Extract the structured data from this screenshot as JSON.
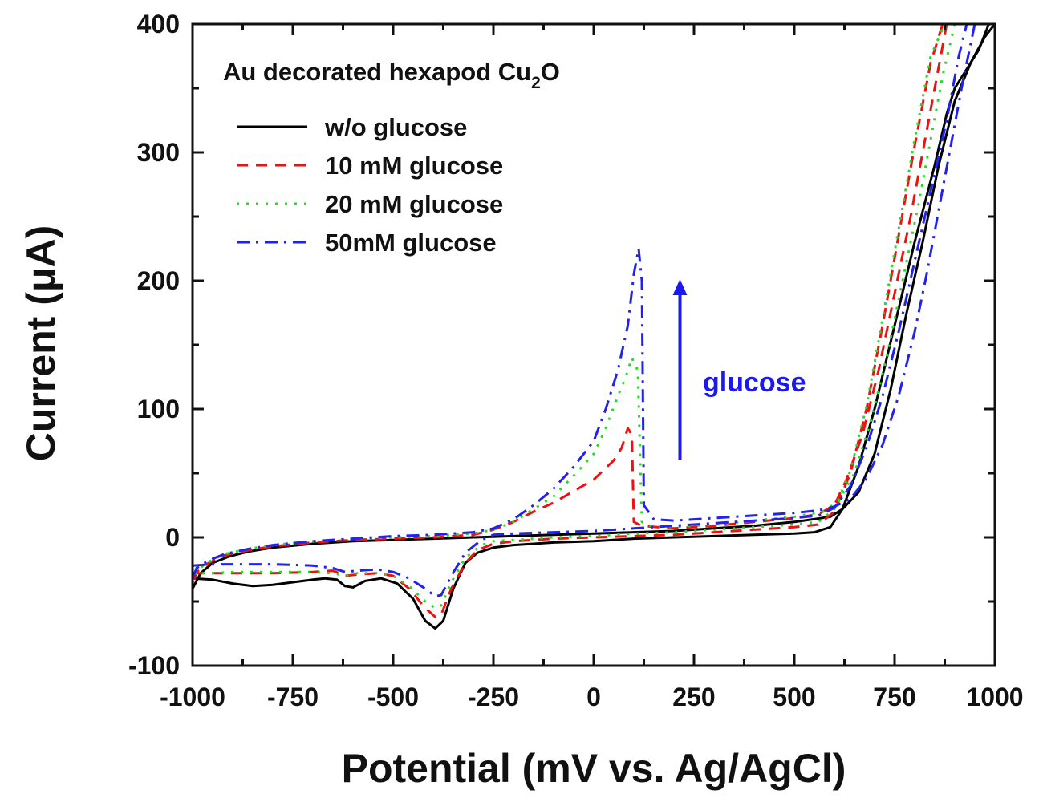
{
  "chart_data": {
    "type": "line",
    "title": "Au decorated hexapod Cu",
    "title_subscript": "2",
    "title_suffix": "O",
    "xlabel": "Potential (mV vs. Ag/AgCl)",
    "ylabel": "Current (μA)",
    "xlim": [
      -1000,
      1000
    ],
    "ylim": [
      -100,
      400
    ],
    "xticks": [
      -1000,
      -750,
      -500,
      -250,
      0,
      250,
      500,
      750,
      1000
    ],
    "yticks": [
      -100,
      0,
      100,
      200,
      300,
      400
    ],
    "legend_position": "top-left",
    "annotation": {
      "text": "glucose",
      "color": "#1a1aee",
      "arrow_x": 215,
      "arrow_from": 60,
      "arrow_to": 200
    },
    "series": [
      {
        "name": "w/o glucose",
        "color": "#000000",
        "dash": "",
        "forward": [
          [
            -1000,
            -32
          ],
          [
            -950,
            -33
          ],
          [
            -900,
            -36
          ],
          [
            -850,
            -38
          ],
          [
            -800,
            -37
          ],
          [
            -750,
            -35
          ],
          [
            -700,
            -33
          ],
          [
            -670,
            -32
          ],
          [
            -640,
            -33
          ],
          [
            -620,
            -38
          ],
          [
            -600,
            -39
          ],
          [
            -570,
            -34
          ],
          [
            -530,
            -32
          ],
          [
            -490,
            -36
          ],
          [
            -450,
            -48
          ],
          [
            -420,
            -65
          ],
          [
            -395,
            -71
          ],
          [
            -375,
            -65
          ],
          [
            -350,
            -40
          ],
          [
            -320,
            -20
          ],
          [
            -290,
            -12
          ],
          [
            -250,
            -8
          ],
          [
            -200,
            -6
          ],
          [
            -100,
            -4
          ],
          [
            0,
            -3
          ],
          [
            100,
            -1
          ],
          [
            200,
            0
          ],
          [
            300,
            1
          ],
          [
            400,
            2
          ],
          [
            500,
            3
          ],
          [
            550,
            4
          ],
          [
            590,
            8
          ],
          [
            620,
            22
          ],
          [
            660,
            55
          ],
          [
            700,
            100
          ],
          [
            750,
            165
          ],
          [
            800,
            230
          ],
          [
            850,
            290
          ],
          [
            880,
            330
          ],
          [
            900,
            350
          ],
          [
            930,
            365
          ],
          [
            960,
            380
          ],
          [
            985,
            400
          ]
        ],
        "backward": [
          [
            1000,
            400
          ],
          [
            975,
            390
          ],
          [
            940,
            370
          ],
          [
            900,
            340
          ],
          [
            860,
            290
          ],
          [
            820,
            230
          ],
          [
            780,
            175
          ],
          [
            740,
            115
          ],
          [
            700,
            65
          ],
          [
            660,
            35
          ],
          [
            620,
            22
          ],
          [
            590,
            16
          ],
          [
            500,
            12
          ],
          [
            400,
            9
          ],
          [
            300,
            7
          ],
          [
            200,
            5
          ],
          [
            100,
            4
          ],
          [
            0,
            3
          ],
          [
            -100,
            2
          ],
          [
            -200,
            1
          ],
          [
            -300,
            0
          ],
          [
            -400,
            -1
          ],
          [
            -500,
            -2
          ],
          [
            -600,
            -3
          ],
          [
            -700,
            -5
          ],
          [
            -800,
            -8
          ],
          [
            -860,
            -11
          ],
          [
            -910,
            -15
          ],
          [
            -950,
            -20
          ],
          [
            -980,
            -28
          ],
          [
            -1000,
            -40
          ]
        ]
      },
      {
        "name": "10 mM glucose",
        "color": "#ee1111",
        "dash": "14,10",
        "forward": [
          [
            -1000,
            -28
          ],
          [
            -950,
            -28
          ],
          [
            -900,
            -28
          ],
          [
            -800,
            -28
          ],
          [
            -700,
            -27
          ],
          [
            -650,
            -26
          ],
          [
            -620,
            -30
          ],
          [
            -590,
            -29
          ],
          [
            -540,
            -28
          ],
          [
            -500,
            -30
          ],
          [
            -460,
            -40
          ],
          [
            -420,
            -55
          ],
          [
            -395,
            -62
          ],
          [
            -380,
            -60
          ],
          [
            -355,
            -40
          ],
          [
            -320,
            -20
          ],
          [
            -290,
            -10
          ],
          [
            -250,
            -5
          ],
          [
            -200,
            -3
          ],
          [
            -100,
            -1
          ],
          [
            0,
            0
          ],
          [
            100,
            1
          ],
          [
            200,
            2
          ],
          [
            300,
            4
          ],
          [
            400,
            6
          ],
          [
            500,
            8
          ],
          [
            560,
            10
          ],
          [
            600,
            20
          ],
          [
            640,
            50
          ],
          [
            680,
            100
          ],
          [
            720,
            165
          ],
          [
            760,
            235
          ],
          [
            800,
            305
          ],
          [
            840,
            370
          ],
          [
            870,
            400
          ]
        ],
        "backward": [
          [
            880,
            400
          ],
          [
            850,
            350
          ],
          [
            820,
            300
          ],
          [
            790,
            250
          ],
          [
            750,
            190
          ],
          [
            710,
            130
          ],
          [
            670,
            80
          ],
          [
            630,
            45
          ],
          [
            600,
            25
          ],
          [
            560,
            18
          ],
          [
            500,
            15
          ],
          [
            400,
            12
          ],
          [
            300,
            9
          ],
          [
            200,
            7
          ],
          [
            160,
            8
          ],
          [
            120,
            9
          ],
          [
            100,
            12
          ],
          [
            95,
            80
          ],
          [
            85,
            85
          ],
          [
            70,
            70
          ],
          [
            50,
            60
          ],
          [
            0,
            45
          ],
          [
            -50,
            36
          ],
          [
            -100,
            27
          ],
          [
            -150,
            20
          ],
          [
            -200,
            12
          ],
          [
            -250,
            6
          ],
          [
            -300,
            2
          ],
          [
            -400,
            0
          ],
          [
            -500,
            -1
          ],
          [
            -600,
            -2
          ],
          [
            -700,
            -4
          ],
          [
            -800,
            -7
          ],
          [
            -860,
            -10
          ],
          [
            -920,
            -14
          ],
          [
            -960,
            -20
          ],
          [
            -990,
            -27
          ],
          [
            -1000,
            -38
          ]
        ]
      },
      {
        "name": "20 mM glucose",
        "color": "#22dd22",
        "dash": "3,9",
        "forward": [
          [
            -1000,
            -28
          ],
          [
            -950,
            -28
          ],
          [
            -900,
            -27
          ],
          [
            -800,
            -27
          ],
          [
            -700,
            -27
          ],
          [
            -650,
            -28
          ],
          [
            -620,
            -30
          ],
          [
            -590,
            -28
          ],
          [
            -540,
            -28
          ],
          [
            -500,
            -30
          ],
          [
            -460,
            -38
          ],
          [
            -420,
            -50
          ],
          [
            -395,
            -55
          ],
          [
            -380,
            -53
          ],
          [
            -355,
            -35
          ],
          [
            -320,
            -16
          ],
          [
            -280,
            -6
          ],
          [
            -250,
            -3
          ],
          [
            -200,
            -2
          ],
          [
            -100,
            0
          ],
          [
            0,
            1
          ],
          [
            100,
            3
          ],
          [
            200,
            4
          ],
          [
            300,
            6
          ],
          [
            400,
            8
          ],
          [
            500,
            10
          ],
          [
            560,
            12
          ],
          [
            600,
            22
          ],
          [
            640,
            52
          ],
          [
            680,
            102
          ],
          [
            720,
            170
          ],
          [
            760,
            240
          ],
          [
            800,
            310
          ],
          [
            840,
            375
          ],
          [
            875,
            400
          ]
        ],
        "backward": [
          [
            900,
            400
          ],
          [
            870,
            360
          ],
          [
            840,
            310
          ],
          [
            810,
            260
          ],
          [
            770,
            200
          ],
          [
            730,
            140
          ],
          [
            690,
            90
          ],
          [
            650,
            50
          ],
          [
            610,
            28
          ],
          [
            570,
            20
          ],
          [
            500,
            16
          ],
          [
            400,
            13
          ],
          [
            300,
            10
          ],
          [
            200,
            8
          ],
          [
            140,
            9
          ],
          [
            120,
            12
          ],
          [
            110,
            130
          ],
          [
            95,
            140
          ],
          [
            80,
            125
          ],
          [
            60,
            110
          ],
          [
            30,
            85
          ],
          [
            0,
            65
          ],
          [
            -50,
            48
          ],
          [
            -100,
            32
          ],
          [
            -150,
            22
          ],
          [
            -200,
            12
          ],
          [
            -250,
            6
          ],
          [
            -300,
            3
          ],
          [
            -400,
            1
          ],
          [
            -500,
            0
          ],
          [
            -600,
            -1
          ],
          [
            -700,
            -3
          ],
          [
            -800,
            -6
          ],
          [
            -860,
            -9
          ],
          [
            -920,
            -13
          ],
          [
            -960,
            -19
          ],
          [
            -990,
            -26
          ],
          [
            -1000,
            -36
          ]
        ]
      },
      {
        "name": "50mM glucose",
        "color": "#2222ee",
        "dash": "16,8,3,8",
        "forward": [
          [
            -1000,
            -22
          ],
          [
            -950,
            -21
          ],
          [
            -900,
            -21
          ],
          [
            -800,
            -21
          ],
          [
            -700,
            -22
          ],
          [
            -650,
            -24
          ],
          [
            -620,
            -27
          ],
          [
            -590,
            -26
          ],
          [
            -540,
            -25
          ],
          [
            -500,
            -27
          ],
          [
            -460,
            -32
          ],
          [
            -420,
            -40
          ],
          [
            -395,
            -46
          ],
          [
            -380,
            -45
          ],
          [
            -355,
            -30
          ],
          [
            -320,
            -12
          ],
          [
            -280,
            -2
          ],
          [
            -250,
            2
          ],
          [
            -200,
            3
          ],
          [
            -100,
            4
          ],
          [
            0,
            5
          ],
          [
            100,
            7
          ],
          [
            200,
            9
          ],
          [
            300,
            11
          ],
          [
            400,
            13
          ],
          [
            500,
            15
          ],
          [
            560,
            17
          ],
          [
            600,
            23
          ],
          [
            640,
            40
          ],
          [
            680,
            70
          ],
          [
            720,
            110
          ],
          [
            760,
            160
          ],
          [
            800,
            215
          ],
          [
            840,
            270
          ],
          [
            880,
            325
          ],
          [
            910,
            375
          ],
          [
            930,
            400
          ]
        ],
        "backward": [
          [
            950,
            400
          ],
          [
            920,
            355
          ],
          [
            890,
            305
          ],
          [
            860,
            255
          ],
          [
            830,
            205
          ],
          [
            800,
            160
          ],
          [
            760,
            110
          ],
          [
            720,
            72
          ],
          [
            680,
            46
          ],
          [
            640,
            30
          ],
          [
            600,
            24
          ],
          [
            560,
            21
          ],
          [
            500,
            19
          ],
          [
            400,
            17
          ],
          [
            300,
            15
          ],
          [
            200,
            13
          ],
          [
            150,
            14
          ],
          [
            125,
            25
          ],
          [
            120,
            200
          ],
          [
            112,
            225
          ],
          [
            100,
            205
          ],
          [
            85,
            165
          ],
          [
            60,
            130
          ],
          [
            30,
            100
          ],
          [
            0,
            75
          ],
          [
            -50,
            55
          ],
          [
            -100,
            38
          ],
          [
            -150,
            25
          ],
          [
            -200,
            14
          ],
          [
            -250,
            7
          ],
          [
            -300,
            4
          ],
          [
            -400,
            2
          ],
          [
            -500,
            1
          ],
          [
            -600,
            -1
          ],
          [
            -700,
            -3
          ],
          [
            -800,
            -6
          ],
          [
            -860,
            -9
          ],
          [
            -920,
            -13
          ],
          [
            -960,
            -18
          ],
          [
            -990,
            -24
          ],
          [
            -1000,
            -32
          ]
        ]
      }
    ]
  }
}
